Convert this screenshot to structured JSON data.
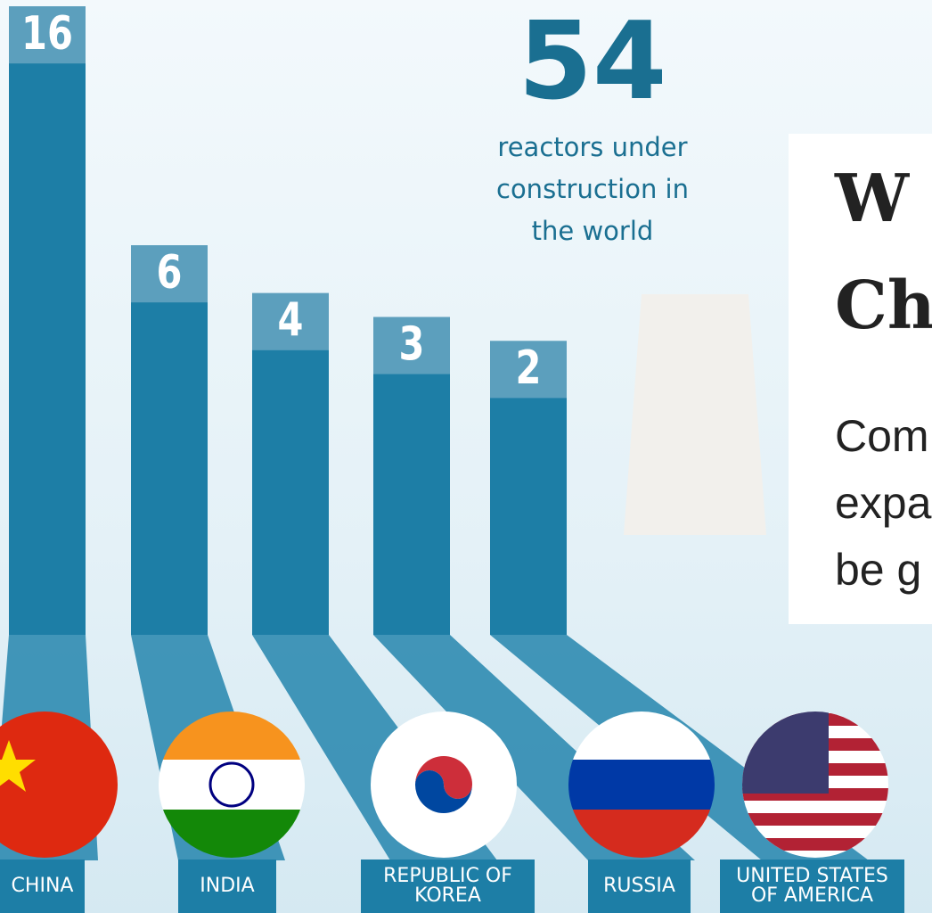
{
  "chart_data": {
    "type": "bar",
    "headline_value": "54",
    "headline_text": "reactors under construction in the world",
    "categories": [
      "CHINA",
      "INDIA",
      "REPUBLIC OF KOREA",
      "RUSSIA",
      "UNITED STATES OF AMERICA"
    ],
    "values": [
      16,
      6,
      4,
      3,
      2
    ],
    "color": "#1d7ea6"
  },
  "overlay": {
    "lines": [
      "W",
      "Ch",
      "Com",
      "expa",
      "be g"
    ]
  }
}
